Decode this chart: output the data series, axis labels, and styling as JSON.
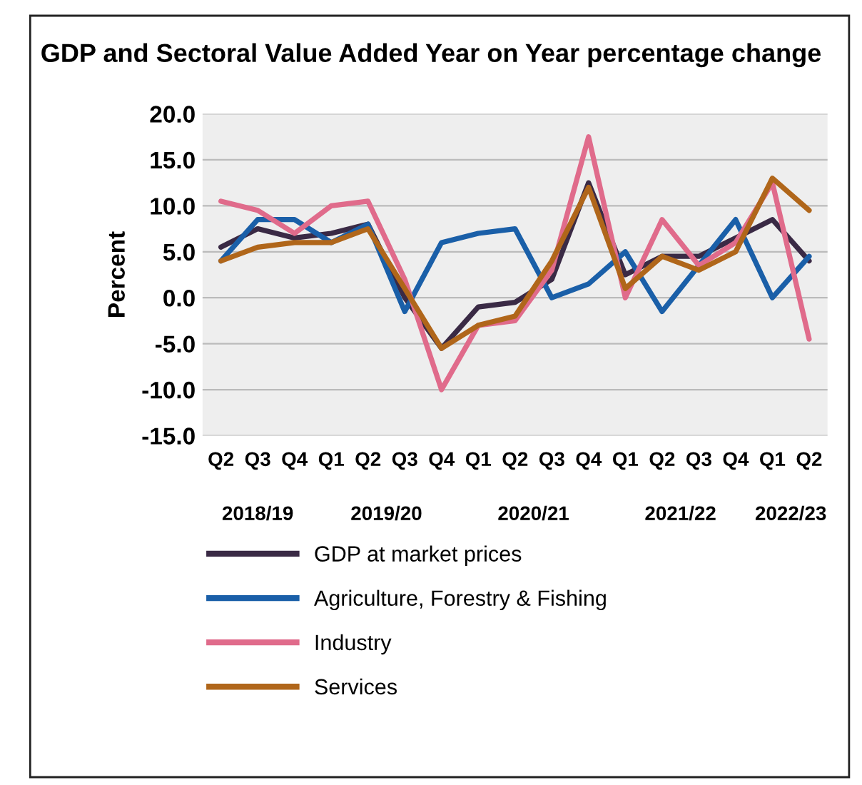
{
  "chart_data": {
    "type": "line",
    "title": "GDP and Sectoral Value Added Year on Year percentage change",
    "ylabel": "Percent",
    "categories": [
      "Q2",
      "Q3",
      "Q4",
      "Q1",
      "Q2",
      "Q3",
      "Q4",
      "Q1",
      "Q2",
      "Q3",
      "Q4",
      "Q1",
      "Q2",
      "Q3",
      "Q4",
      "Q1",
      "Q2"
    ],
    "series": [
      {
        "name": "GDP at market prices",
        "color": "#3a2a45",
        "values": [
          5.5,
          7.5,
          6.5,
          7.0,
          8.0,
          0.0,
          -5.5,
          -1.0,
          -0.5,
          2.0,
          12.5,
          2.5,
          4.5,
          4.5,
          6.5,
          8.5,
          4.0
        ]
      },
      {
        "name": "Agriculture, Forestry & Fishing",
        "color": "#1a5fa8",
        "values": [
          4.0,
          8.5,
          8.5,
          6.0,
          8.0,
          -1.5,
          6.0,
          7.0,
          7.5,
          0.0,
          1.5,
          5.0,
          -1.5,
          3.5,
          8.5,
          0.0,
          4.5
        ]
      },
      {
        "name": "Industry",
        "color": "#e06b8b",
        "values": [
          10.5,
          9.5,
          7.0,
          10.0,
          10.5,
          2.0,
          -10.0,
          -3.0,
          -2.5,
          3.0,
          17.5,
          0.0,
          8.5,
          3.5,
          6.0,
          12.5,
          -4.5
        ]
      },
      {
        "name": "Services",
        "color": "#b0661a",
        "values": [
          4.0,
          5.5,
          6.0,
          6.0,
          7.5,
          1.0,
          -5.5,
          -3.0,
          -2.0,
          4.0,
          12.0,
          1.0,
          4.5,
          3.0,
          5.0,
          13.0,
          9.5
        ]
      }
    ],
    "annotations": [
      "2018/19",
      "2019/20",
      "2020/21",
      "2021/22",
      "2022/23"
    ],
    "ylim": [
      -15.0,
      20.0
    ],
    "yticks": [
      {
        "value": -15,
        "label": "-15.0"
      },
      {
        "value": -10,
        "label": "-10.0"
      },
      {
        "value": -5,
        "label": "-5.0"
      },
      {
        "value": 0,
        "label": "0.0"
      },
      {
        "value": 5,
        "label": "5.0"
      },
      {
        "value": 10,
        "label": "10.0"
      },
      {
        "value": 15,
        "label": "15.0"
      },
      {
        "value": 20,
        "label": "20.0"
      }
    ],
    "grid": "y",
    "legend": "bottom",
    "line_style": "solid",
    "marker": "none"
  }
}
